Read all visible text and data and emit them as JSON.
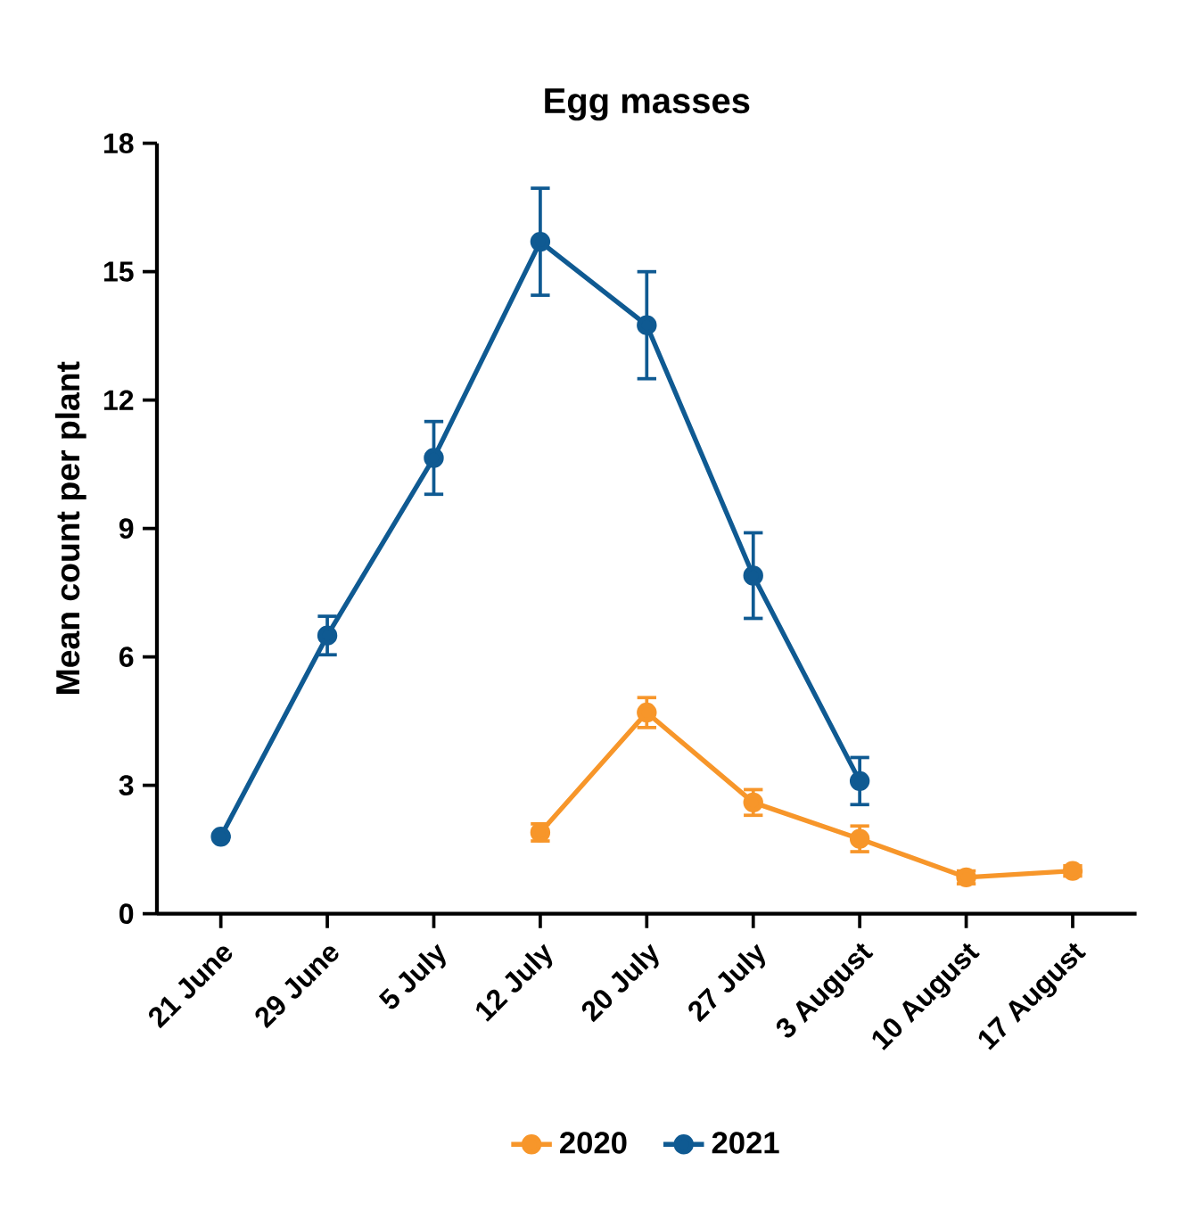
{
  "chart_data": {
    "type": "line",
    "title": "Egg masses",
    "ylabel": "Mean count per plant",
    "categories": [
      "21 June",
      "29 June",
      "5 July",
      "12 July",
      "20 July",
      "27 July",
      "3 August",
      "10 August",
      "17 August"
    ],
    "series": [
      {
        "name": "2020",
        "color": "#f7962a",
        "values": [
          null,
          null,
          null,
          1.9,
          4.7,
          2.6,
          1.75,
          0.85,
          1.0
        ],
        "errors": [
          null,
          null,
          null,
          0.2,
          0.35,
          0.3,
          0.3,
          0.15,
          0.12
        ]
      },
      {
        "name": "2021",
        "color": "#0f5a92",
        "values": [
          1.8,
          6.5,
          10.65,
          15.7,
          13.75,
          7.9,
          3.1,
          null,
          null
        ],
        "errors": [
          null,
          0.45,
          0.85,
          1.25,
          1.25,
          1.0,
          0.55,
          null,
          null
        ]
      }
    ],
    "ylim": [
      0,
      18
    ],
    "yticks": [
      0,
      3,
      6,
      9,
      12,
      15,
      18
    ],
    "marker": "circle",
    "line_style": "solid",
    "legend": "bottom",
    "grid": false
  }
}
